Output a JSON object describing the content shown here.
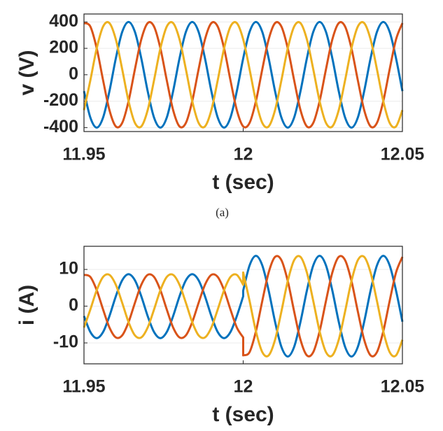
{
  "chart_data": [
    {
      "type": "line",
      "ylabel": "v (V)",
      "xlabel": "t (sec)",
      "caption": "(a)",
      "xlim": [
        11.95,
        12.05
      ],
      "xticks": [
        11.95,
        12,
        12.05
      ],
      "ylim": [
        -430,
        460
      ],
      "yticks": [
        -400,
        -200,
        0,
        200,
        400
      ],
      "grid": true,
      "x": [
        11.95,
        11.952,
        11.954,
        11.956,
        11.958,
        11.96,
        11.962,
        11.964,
        11.966,
        11.968,
        11.97,
        11.972,
        11.974,
        11.976,
        11.978,
        11.98,
        11.982,
        11.984,
        11.986,
        11.988,
        11.99,
        11.992,
        11.994,
        11.996,
        11.998,
        12,
        12.002,
        12.004,
        12.006,
        12.008,
        12.01,
        12.012,
        12.014,
        12.016,
        12.018,
        12.02,
        12.022,
        12.024,
        12.026,
        12.028,
        12.03,
        12.032,
        12.034,
        12.036,
        12.038,
        12.04,
        12.042,
        12.044,
        12.046,
        12.048,
        12.05
      ],
      "series": [
        {
          "color": "#0072BD",
          "values": [
            -124,
            -324,
            -400,
            -324,
            -124,
            124,
            324,
            400,
            324,
            124,
            -124,
            -324,
            -400,
            -324,
            -124,
            124,
            324,
            400,
            324,
            124,
            -124,
            -324,
            -400,
            -324,
            -124,
            124,
            324,
            400,
            324,
            124,
            -124,
            -324,
            -400,
            -324,
            -124,
            124,
            324,
            400,
            324,
            124,
            -124,
            -324,
            -400,
            -324,
            -124,
            124,
            324,
            400,
            324,
            124,
            -124
          ]
        },
        {
          "color": "#D95319",
          "values": [
            391,
            365,
            200,
            -42,
            -268,
            -391,
            -365,
            -200,
            42,
            268,
            391,
            365,
            200,
            -42,
            -268,
            -391,
            -365,
            -200,
            42,
            268,
            391,
            365,
            200,
            -42,
            -268,
            -391,
            -365,
            -200,
            42,
            268,
            391,
            365,
            200,
            -42,
            -268,
            -391,
            -365,
            -200,
            42,
            268,
            391,
            365,
            200,
            -42,
            -268,
            -391,
            -365,
            -200,
            42,
            268,
            391
          ]
        },
        {
          "color": "#EDB120",
          "values": [
            -268,
            -42,
            200,
            365,
            391,
            268,
            42,
            -200,
            -365,
            -391,
            -268,
            -42,
            200,
            365,
            391,
            268,
            42,
            -200,
            -365,
            -391,
            -268,
            -42,
            200,
            365,
            391,
            268,
            42,
            -200,
            -365,
            -391,
            -268,
            -42,
            200,
            365,
            391,
            268,
            42,
            -200,
            -365,
            -391,
            -268,
            -42,
            200,
            365,
            391,
            268,
            42,
            -200,
            -365,
            -391,
            -268
          ]
        }
      ]
    },
    {
      "type": "line",
      "ylabel": "i (A)",
      "xlabel": "t (sec)",
      "xlim": [
        11.95,
        12.05
      ],
      "xticks": [
        11.95,
        12,
        12.05
      ],
      "ylim": [
        -15.7,
        16.3
      ],
      "yticks": [
        -10,
        0,
        10
      ],
      "grid": true,
      "x": [
        11.95,
        11.952,
        11.954,
        11.956,
        11.958,
        11.96,
        11.962,
        11.964,
        11.966,
        11.968,
        11.97,
        11.972,
        11.974,
        11.976,
        11.978,
        11.98,
        11.982,
        11.984,
        11.986,
        11.988,
        11.99,
        11.992,
        11.994,
        11.996,
        11.998,
        12,
        12,
        12.002,
        12.004,
        12.006,
        12.008,
        12.01,
        12.012,
        12.014,
        12.016,
        12.018,
        12.02,
        12.022,
        12.024,
        12.026,
        12.028,
        12.03,
        12.032,
        12.034,
        12.036,
        12.038,
        12.04,
        12.042,
        12.044,
        12.046,
        12.048,
        12.05
      ],
      "series": [
        {
          "color": "#0072BD",
          "values": [
            -2.69,
            -7.04,
            -8.7,
            -7.04,
            -2.69,
            2.69,
            7.04,
            8.7,
            7.04,
            2.69,
            -2.69,
            -7.04,
            -8.7,
            -7.04,
            -2.69,
            2.69,
            7.04,
            8.7,
            7.04,
            2.69,
            -2.69,
            -7.04,
            -8.7,
            -7.04,
            -2.69,
            2.69,
            4.23,
            11.08,
            13.7,
            11.08,
            4.23,
            -4.23,
            -11.08,
            -13.7,
            -11.08,
            -4.23,
            4.23,
            11.08,
            13.7,
            11.08,
            4.23,
            -4.23,
            -11.08,
            -13.7,
            -11.08,
            -4.23,
            4.23,
            11.08,
            13.7,
            11.08,
            4.23,
            -4.23
          ]
        },
        {
          "color": "#D95319",
          "values": [
            8.51,
            7.95,
            4.35,
            -0.91,
            -5.82,
            -8.51,
            -7.95,
            -4.35,
            0.91,
            5.82,
            8.51,
            7.95,
            4.35,
            -0.91,
            -5.82,
            -8.51,
            -7.95,
            -4.35,
            0.91,
            5.82,
            8.51,
            7.95,
            4.35,
            -0.91,
            -5.82,
            -8.51,
            -13.4,
            -12.52,
            -6.85,
            1.44,
            9.17,
            13.4,
            12.52,
            6.85,
            -1.44,
            -9.17,
            -13.4,
            -12.52,
            -6.85,
            1.44,
            9.17,
            13.4,
            12.52,
            6.85,
            -1.44,
            -9.17,
            -13.4,
            -12.52,
            -6.85,
            1.44,
            9.17,
            13.4
          ]
        },
        {
          "color": "#EDB120",
          "values": [
            -5.82,
            -0.91,
            4.35,
            7.95,
            8.51,
            5.82,
            0.91,
            -4.35,
            -7.95,
            -8.51,
            -5.82,
            -0.91,
            4.35,
            7.95,
            8.51,
            5.82,
            0.91,
            -4.35,
            -7.95,
            -8.51,
            -5.82,
            -0.91,
            4.35,
            7.95,
            8.51,
            5.82,
            9.17,
            1.44,
            -6.85,
            -12.52,
            -13.4,
            -9.17,
            -1.44,
            6.85,
            12.52,
            13.4,
            9.17,
            1.44,
            -6.85,
            -12.52,
            -13.4,
            -9.17,
            -1.44,
            6.85,
            12.52,
            13.4,
            9.17,
            1.44,
            -6.85,
            -12.52,
            -13.4,
            -9.17
          ]
        }
      ]
    }
  ]
}
